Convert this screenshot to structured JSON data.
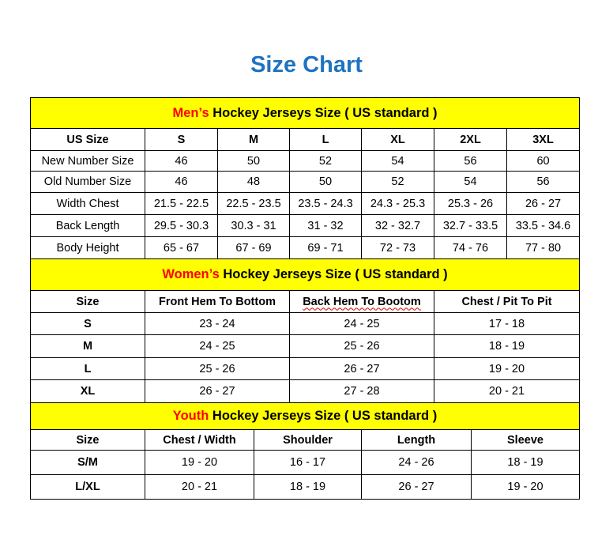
{
  "title": "Size Chart",
  "colors": {
    "title": "#1f73c0",
    "header_bg": "#ffff00",
    "accent": "#ff0000"
  },
  "mens": {
    "heading_accent": "Men’s",
    "heading_rest": " Hockey Jerseys Size ( US standard )",
    "columns": [
      "US Size",
      "S",
      "M",
      "L",
      "XL",
      "2XL",
      "3XL"
    ],
    "rows": [
      [
        "New Number Size",
        "46",
        "50",
        "52",
        "54",
        "56",
        "60"
      ],
      [
        "Old Number Size",
        "46",
        "48",
        "50",
        "52",
        "54",
        "56"
      ],
      [
        "Width Chest",
        "21.5 - 22.5",
        "22.5 - 23.5",
        "23.5 - 24.3",
        "24.3 - 25.3",
        "25.3 - 26",
        "26 - 27"
      ],
      [
        "Back Length",
        "29.5 - 30.3",
        "30.3 - 31",
        "31 - 32",
        "32 - 32.7",
        "32.7 - 33.5",
        "33.5 - 34.6"
      ],
      [
        "Body Height",
        "65 - 67",
        "67 - 69",
        "69 - 71",
        "72 - 73",
        "74 - 76",
        "77 - 80"
      ]
    ]
  },
  "womens": {
    "heading_accent": "Women’s",
    "heading_rest": " Hockey Jerseys Size ( US standard )",
    "columns": [
      "Size",
      "Front Hem To Bottom",
      "Back Hem To Bootom",
      "Chest / Pit To Pit"
    ],
    "rows": [
      [
        "S",
        "23 - 24",
        "24 - 25",
        "17 - 18"
      ],
      [
        "M",
        "24 - 25",
        "25 - 26",
        "18 - 19"
      ],
      [
        "L",
        "25 - 26",
        "26 - 27",
        "19 - 20"
      ],
      [
        "XL",
        "26 - 27",
        "27 - 28",
        "20 - 21"
      ]
    ]
  },
  "youth": {
    "heading_accent": "Youth",
    "heading_rest": " Hockey Jerseys Size ( US standard )",
    "columns": [
      "Size",
      "Chest / Width",
      "Shoulder",
      "Length",
      "Sleeve"
    ],
    "rows": [
      [
        "S/M",
        "19 - 20",
        "16 - 17",
        "24 - 26",
        "18 - 19"
      ],
      [
        "L/XL",
        "20 - 21",
        "18 - 19",
        "26 - 27",
        "19 - 20"
      ]
    ]
  }
}
